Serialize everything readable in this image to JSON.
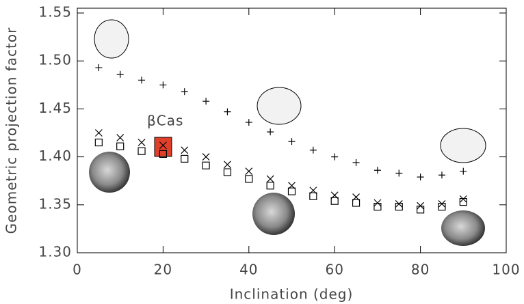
{
  "chart_data": {
    "type": "scatter",
    "xlabel": "Inclination (deg)",
    "ylabel": "Geometric projection factor",
    "annotation": "βCas",
    "x": [
      5,
      10,
      15,
      20,
      25,
      30,
      35,
      40,
      45,
      50,
      55,
      60,
      65,
      70,
      75,
      80,
      85,
      90
    ],
    "series": [
      {
        "color": "#000000",
        "marker": "plus",
        "values": [
          1.493,
          1.486,
          1.48,
          1.475,
          1.468,
          1.458,
          1.447,
          1.436,
          1.426,
          1.416,
          1.407,
          1.4,
          1.394,
          1.386,
          1.383,
          1.379,
          1.381,
          1.385
        ]
      },
      {
        "color": "#000000",
        "marker": "cross",
        "values": [
          1.425,
          1.42,
          1.415,
          1.412,
          1.407,
          1.4,
          1.392,
          1.385,
          1.377,
          1.37,
          1.365,
          1.36,
          1.358,
          1.352,
          1.351,
          1.349,
          1.351,
          1.356
        ]
      },
      {
        "color": "#000000",
        "marker": "square",
        "values": [
          1.415,
          1.411,
          1.406,
          1.403,
          1.398,
          1.391,
          1.384,
          1.377,
          1.37,
          1.364,
          1.359,
          1.354,
          1.352,
          1.348,
          1.348,
          1.345,
          1.348,
          1.353
        ]
      }
    ],
    "xlim": [
      0,
      100
    ],
    "xticks": [
      0,
      20,
      40,
      60,
      80,
      100
    ],
    "ylim": [
      1.3,
      1.555
    ],
    "yticks": [
      {
        "value": 1.3,
        "label": "1.30"
      },
      {
        "value": 1.35,
        "label": "1.35"
      },
      {
        "value": 1.4,
        "label": "1.40"
      },
      {
        "value": 1.45,
        "label": "1.45"
      },
      {
        "value": 1.5,
        "label": "1.50"
      },
      {
        "value": 1.55,
        "label": "1.55"
      }
    ]
  }
}
